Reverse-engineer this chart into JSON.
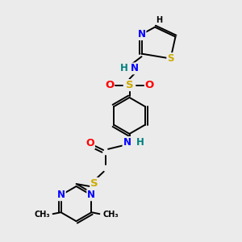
{
  "bg_color": "#ebebeb",
  "atom_colors": {
    "C": "#000000",
    "N": "#0000ff",
    "O": "#ff0000",
    "S": "#ccaa00",
    "H": "#008080"
  }
}
